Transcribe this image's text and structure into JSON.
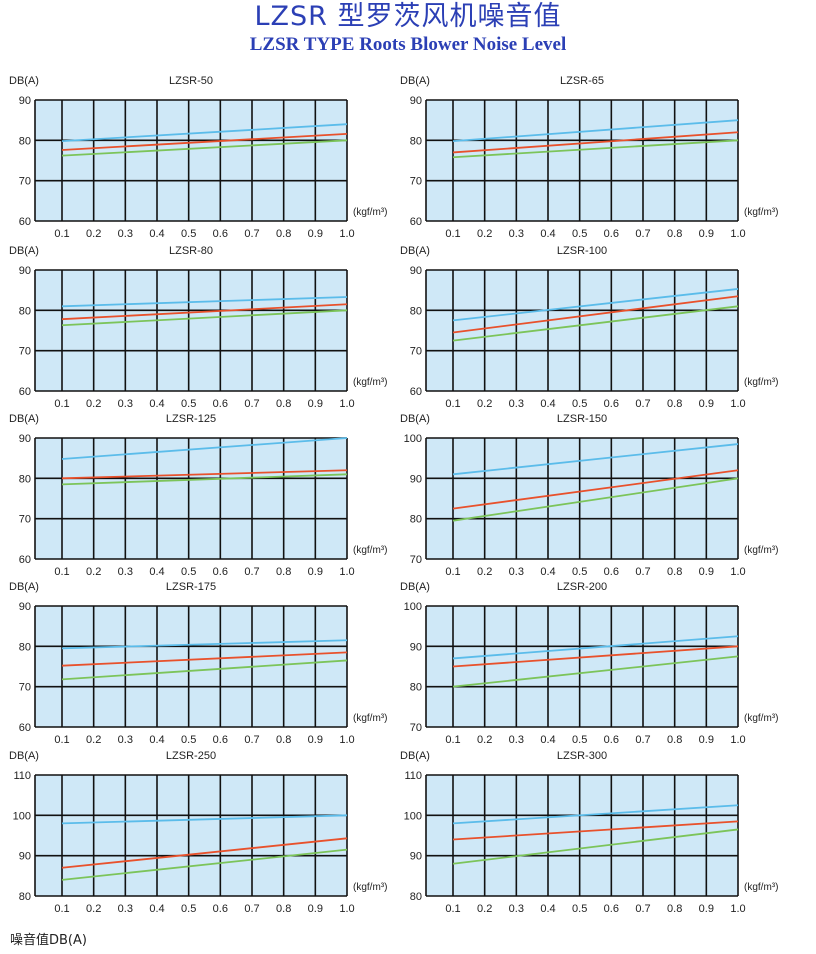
{
  "page": {
    "title_cn": "LZSR 型罗茨风机噪音值",
    "title_en": "LZSR TYPE Roots Blower Noise Level",
    "footer": "噪音值DB(A)"
  },
  "colors": {
    "blue": "#5bbcea",
    "red": "#e8512c",
    "green": "#7cc45a",
    "background": "#cfe8f7",
    "grid": "#111111",
    "title": "#2b3fb5"
  },
  "chart_data": [
    {
      "type": "line",
      "title": "LZSR-50",
      "ylabel": "DB(A)",
      "xlabel": "(kgf/m³)",
      "x": [
        0.1,
        1.0
      ],
      "x_ticks": [
        "0.1",
        "0.2",
        "0.3",
        "0.4",
        "0.5",
        "0.6",
        "0.7",
        "0.8",
        "0.9",
        "1.0"
      ],
      "ylim": [
        60,
        90
      ],
      "y_ticks": [
        60,
        70,
        80,
        90
      ],
      "series": [
        {
          "color": "blue",
          "values": [
            79.8,
            84.0
          ]
        },
        {
          "color": "red",
          "values": [
            77.6,
            81.6
          ]
        },
        {
          "color": "green",
          "values": [
            76.2,
            80.0
          ]
        }
      ]
    },
    {
      "type": "line",
      "title": "LZSR-65",
      "ylabel": "DB(A)",
      "xlabel": "(kgf/m³)",
      "x": [
        0.1,
        1.0
      ],
      "x_ticks": [
        "0.1",
        "0.2",
        "0.3",
        "0.4",
        "0.5",
        "0.6",
        "0.7",
        "0.8",
        "0.9",
        "1.0"
      ],
      "ylim": [
        60,
        90
      ],
      "y_ticks": [
        60,
        70,
        80,
        90
      ],
      "series": [
        {
          "color": "blue",
          "values": [
            79.8,
            85.0
          ]
        },
        {
          "color": "red",
          "values": [
            77.0,
            82.0
          ]
        },
        {
          "color": "green",
          "values": [
            75.8,
            80.0
          ]
        }
      ]
    },
    {
      "type": "line",
      "title": "LZSR-80",
      "ylabel": "DB(A)",
      "xlabel": "(kgf/m³)",
      "x": [
        0.1,
        1.0
      ],
      "x_ticks": [
        "0.1",
        "0.2",
        "0.3",
        "0.4",
        "0.5",
        "0.6",
        "0.7",
        "0.8",
        "0.9",
        "1.0"
      ],
      "ylim": [
        60,
        90
      ],
      "y_ticks": [
        60,
        70,
        80,
        90
      ],
      "series": [
        {
          "color": "blue",
          "values": [
            81.0,
            83.3
          ]
        },
        {
          "color": "red",
          "values": [
            77.8,
            81.5
          ]
        },
        {
          "color": "green",
          "values": [
            76.3,
            80.0
          ]
        }
      ]
    },
    {
      "type": "line",
      "title": "LZSR-100",
      "ylabel": "DB(A)",
      "xlabel": "(kgf/m³)",
      "x": [
        0.1,
        1.0
      ],
      "x_ticks": [
        "0.1",
        "0.2",
        "0.3",
        "0.4",
        "0.5",
        "0.6",
        "0.7",
        "0.8",
        "0.9",
        "1.0"
      ],
      "ylim": [
        60,
        90
      ],
      "y_ticks": [
        60,
        70,
        80,
        90
      ],
      "series": [
        {
          "color": "blue",
          "values": [
            77.5,
            85.3
          ]
        },
        {
          "color": "red",
          "values": [
            74.5,
            83.5
          ]
        },
        {
          "color": "green",
          "values": [
            72.5,
            81.0
          ]
        }
      ]
    },
    {
      "type": "line",
      "title": "LZSR-125",
      "ylabel": "DB(A)",
      "xlabel": "(kgf/m³)",
      "x": [
        0.1,
        1.0
      ],
      "x_ticks": [
        "0.1",
        "0.2",
        "0.3",
        "0.4",
        "0.5",
        "0.6",
        "0.7",
        "0.8",
        "0.9",
        "1.0"
      ],
      "ylim": [
        60,
        90
      ],
      "y_ticks": [
        60,
        70,
        80,
        90
      ],
      "series": [
        {
          "color": "blue",
          "values": [
            84.8,
            90.0
          ]
        },
        {
          "color": "red",
          "values": [
            80.0,
            82.0
          ]
        },
        {
          "color": "green",
          "values": [
            78.5,
            81.0
          ]
        }
      ]
    },
    {
      "type": "line",
      "title": "LZSR-150",
      "ylabel": "DB(A)",
      "xlabel": "(kgf/m³)",
      "x": [
        0.1,
        1.0
      ],
      "x_ticks": [
        "0.1",
        "0.2",
        "0.3",
        "0.4",
        "0.5",
        "0.6",
        "0.7",
        "0.8",
        "0.9",
        "1.0"
      ],
      "ylim": [
        70,
        100
      ],
      "y_ticks": [
        70,
        80,
        90,
        100
      ],
      "series": [
        {
          "color": "blue",
          "values": [
            91.0,
            98.5
          ]
        },
        {
          "color": "red",
          "values": [
            82.5,
            92.0
          ]
        },
        {
          "color": "green",
          "values": [
            79.5,
            90.0
          ]
        }
      ]
    },
    {
      "type": "line",
      "title": "LZSR-175",
      "ylabel": "DB(A)",
      "xlabel": "(kgf/m³)",
      "x": [
        0.1,
        1.0
      ],
      "x_ticks": [
        "0.1",
        "0.2",
        "0.3",
        "0.4",
        "0.5",
        "0.6",
        "0.7",
        "0.8",
        "0.9",
        "1.0"
      ],
      "ylim": [
        60,
        90
      ],
      "y_ticks": [
        60,
        70,
        80,
        90
      ],
      "series": [
        {
          "color": "blue",
          "values": [
            79.5,
            81.5
          ]
        },
        {
          "color": "red",
          "values": [
            75.2,
            78.5
          ]
        },
        {
          "color": "green",
          "values": [
            71.8,
            76.5
          ]
        }
      ]
    },
    {
      "type": "line",
      "title": "LZSR-200",
      "ylabel": "DB(A)",
      "xlabel": "(kgf/m³)",
      "x": [
        0.1,
        1.0
      ],
      "x_ticks": [
        "0.1",
        "0.2",
        "0.3",
        "0.4",
        "0.5",
        "0.6",
        "0.7",
        "0.8",
        "0.9",
        "1.0"
      ],
      "ylim": [
        70,
        100
      ],
      "y_ticks": [
        70,
        80,
        90,
        100
      ],
      "series": [
        {
          "color": "blue",
          "values": [
            87.0,
            92.5
          ]
        },
        {
          "color": "red",
          "values": [
            85.0,
            90.0
          ]
        },
        {
          "color": "green",
          "values": [
            80.0,
            87.5
          ]
        }
      ]
    },
    {
      "type": "line",
      "title": "LZSR-250",
      "ylabel": "DB(A)",
      "xlabel": "(kgf/m³)",
      "x": [
        0.1,
        1.0
      ],
      "x_ticks": [
        "0.1",
        "0.2",
        "0.3",
        "0.4",
        "0.5",
        "0.6",
        "0.7",
        "0.8",
        "0.9",
        "1.0"
      ],
      "ylim": [
        80,
        110
      ],
      "y_ticks": [
        80,
        90,
        100,
        110
      ],
      "series": [
        {
          "color": "blue",
          "values": [
            98.0,
            100.0
          ]
        },
        {
          "color": "red",
          "values": [
            87.0,
            94.3
          ]
        },
        {
          "color": "green",
          "values": [
            84.0,
            91.5
          ]
        }
      ]
    },
    {
      "type": "line",
      "title": "LZSR-300",
      "ylabel": "DB(A)",
      "xlabel": "(kgf/m³)",
      "x": [
        0.1,
        1.0
      ],
      "x_ticks": [
        "0.1",
        "0.2",
        "0.3",
        "0.4",
        "0.5",
        "0.6",
        "0.7",
        "0.8",
        "0.9",
        "1.0"
      ],
      "ylim": [
        80,
        110
      ],
      "y_ticks": [
        80,
        90,
        100,
        110
      ],
      "series": [
        {
          "color": "blue",
          "values": [
            98.0,
            102.5
          ]
        },
        {
          "color": "red",
          "values": [
            94.0,
            98.5
          ]
        },
        {
          "color": "green",
          "values": [
            88.0,
            96.5
          ]
        }
      ]
    }
  ]
}
